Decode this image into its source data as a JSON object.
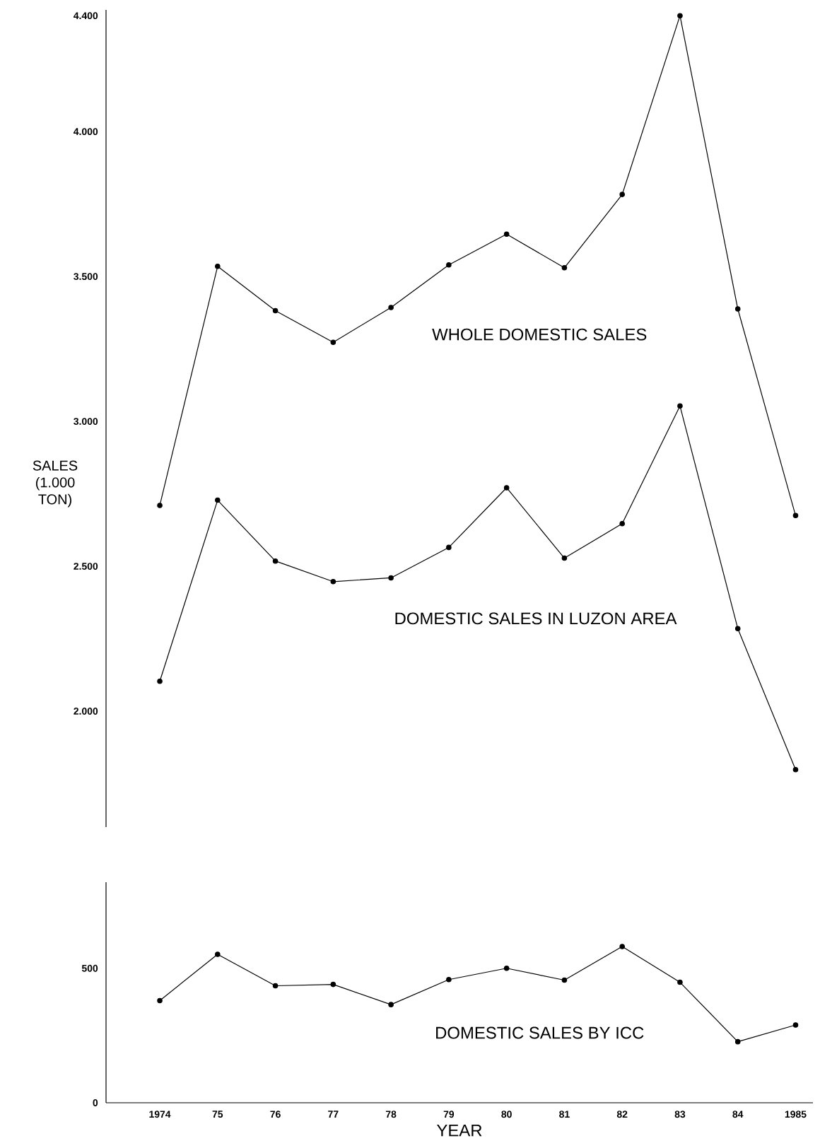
{
  "chart_data": [
    {
      "type": "line",
      "categories": [
        "1974",
        "75",
        "76",
        "77",
        "78",
        "79",
        "80",
        "81",
        "82",
        "83",
        "84",
        "1985"
      ],
      "ylabel": "SALES (1.000 TON)",
      "ylim": [
        1600,
        4420
      ],
      "yticks": [
        {
          "value": 2000,
          "label": "2.000"
        },
        {
          "value": 2500,
          "label": "2.500"
        },
        {
          "value": 3000,
          "label": "3.000"
        },
        {
          "value": 3500,
          "label": "3.500"
        },
        {
          "value": 4000,
          "label": "4.000"
        },
        {
          "value": 4400,
          "label": "4.400"
        }
      ],
      "tick_labels": "y",
      "marker": "circle",
      "line_style": "solid",
      "series": [
        {
          "name": "WHOLE DOMESTIC SALES",
          "color": "#000000",
          "values": [
            2710,
            3535,
            3382,
            3273,
            3393,
            3540,
            3646,
            3530,
            3783,
            4400,
            3388,
            2675
          ]
        },
        {
          "name": "DOMESTIC SALES IN LUZON AREA",
          "color": "#000000",
          "values": [
            2103,
            2728,
            2518,
            2447,
            2460,
            2565,
            2771,
            2528,
            2647,
            3053,
            2285,
            1798
          ]
        }
      ]
    },
    {
      "type": "line",
      "categories": [
        "1974",
        "75",
        "76",
        "77",
        "78",
        "79",
        "80",
        "81",
        "82",
        "83",
        "84",
        "1985"
      ],
      "xlabel": "YEAR",
      "ylim": [
        0,
        820
      ],
      "yticks": [
        0,
        500
      ],
      "marker": "circle",
      "line_style": "solid",
      "series": [
        {
          "name": "DOMESTIC SALES BY ICC",
          "color": "#000000",
          "values": [
            380,
            552,
            435,
            440,
            365,
            458,
            500,
            456,
            581,
            448,
            227,
            289
          ]
        }
      ]
    }
  ]
}
